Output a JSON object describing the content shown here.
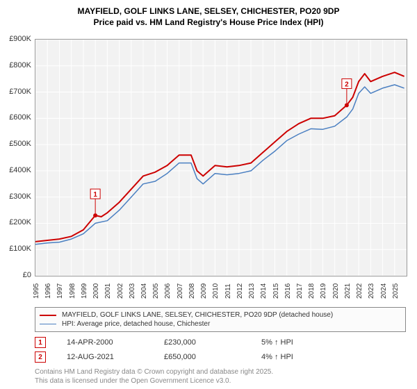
{
  "title_line1": "MAYFIELD, GOLF LINKS LANE, SELSEY, CHICHESTER, PO20 9DP",
  "title_line2": "Price paid vs. HM Land Registry's House Price Index (HPI)",
  "chart": {
    "type": "line",
    "background_color": "#f2f2f2",
    "grid_color": "#ffffff",
    "axis_color": "#999999",
    "ylim": [
      0,
      900
    ],
    "yticks": [
      0,
      100,
      200,
      300,
      400,
      500,
      600,
      700,
      800,
      900
    ],
    "ytick_labels": [
      "£0",
      "£100K",
      "£200K",
      "£300K",
      "£400K",
      "£500K",
      "£600K",
      "£700K",
      "£800K",
      "£900K"
    ],
    "xlim": [
      1995,
      2026
    ],
    "xticks": [
      1995,
      1996,
      1997,
      1998,
      1999,
      2000,
      2001,
      2002,
      2003,
      2004,
      2005,
      2006,
      2007,
      2008,
      2009,
      2010,
      2011,
      2012,
      2013,
      2014,
      2015,
      2016,
      2017,
      2018,
      2019,
      2020,
      2021,
      2022,
      2023,
      2024,
      2025
    ],
    "series": [
      {
        "name": "red",
        "color": "#cc0000",
        "stroke_width": 2,
        "points": [
          [
            1995,
            130
          ],
          [
            1996,
            135
          ],
          [
            1997,
            140
          ],
          [
            1998,
            150
          ],
          [
            1999,
            175
          ],
          [
            2000,
            230
          ],
          [
            2000.5,
            225
          ],
          [
            2001,
            240
          ],
          [
            2002,
            280
          ],
          [
            2003,
            330
          ],
          [
            2004,
            380
          ],
          [
            2005,
            395
          ],
          [
            2006,
            420
          ],
          [
            2007,
            460
          ],
          [
            2008,
            460
          ],
          [
            2008.5,
            400
          ],
          [
            2009,
            380
          ],
          [
            2010,
            420
          ],
          [
            2011,
            415
          ],
          [
            2012,
            420
          ],
          [
            2013,
            430
          ],
          [
            2014,
            470
          ],
          [
            2015,
            510
          ],
          [
            2016,
            550
          ],
          [
            2017,
            580
          ],
          [
            2018,
            600
          ],
          [
            2019,
            600
          ],
          [
            2020,
            610
          ],
          [
            2021,
            650
          ],
          [
            2021.5,
            680
          ],
          [
            2022,
            740
          ],
          [
            2022.5,
            770
          ],
          [
            2023,
            740
          ],
          [
            2024,
            760
          ],
          [
            2025,
            775
          ],
          [
            2025.8,
            760
          ]
        ]
      },
      {
        "name": "blue",
        "color": "#4a7fc1",
        "stroke_width": 1.5,
        "points": [
          [
            1995,
            120
          ],
          [
            1996,
            125
          ],
          [
            1997,
            128
          ],
          [
            1998,
            140
          ],
          [
            1999,
            160
          ],
          [
            2000,
            200
          ],
          [
            2001,
            210
          ],
          [
            2002,
            250
          ],
          [
            2003,
            300
          ],
          [
            2004,
            350
          ],
          [
            2005,
            360
          ],
          [
            2006,
            390
          ],
          [
            2007,
            430
          ],
          [
            2008,
            430
          ],
          [
            2008.5,
            370
          ],
          [
            2009,
            350
          ],
          [
            2010,
            390
          ],
          [
            2011,
            385
          ],
          [
            2012,
            390
          ],
          [
            2013,
            400
          ],
          [
            2014,
            440
          ],
          [
            2015,
            475
          ],
          [
            2016,
            515
          ],
          [
            2017,
            540
          ],
          [
            2018,
            560
          ],
          [
            2019,
            558
          ],
          [
            2020,
            570
          ],
          [
            2021,
            605
          ],
          [
            2021.5,
            635
          ],
          [
            2022,
            695
          ],
          [
            2022.5,
            720
          ],
          [
            2023,
            695
          ],
          [
            2024,
            715
          ],
          [
            2025,
            728
          ],
          [
            2025.8,
            715
          ]
        ]
      }
    ],
    "markers": [
      {
        "num": "1",
        "xyear": 2000,
        "yval": 230,
        "border_color": "#cc0000",
        "text_color": "#cc0000"
      },
      {
        "num": "2",
        "xyear": 2021,
        "yval": 650,
        "border_color": "#cc0000",
        "text_color": "#cc0000"
      }
    ]
  },
  "legend": [
    {
      "color": "#cc0000",
      "width": 2,
      "label": "MAYFIELD, GOLF LINKS LANE, SELSEY, CHICHESTER, PO20 9DP (detached house)"
    },
    {
      "color": "#4a7fc1",
      "width": 1.5,
      "label": "HPI: Average price, detached house, Chichester"
    }
  ],
  "marker_rows": [
    {
      "num": "1",
      "date": "14-APR-2000",
      "price": "£230,000",
      "delta": "5% ↑ HPI"
    },
    {
      "num": "2",
      "date": "12-AUG-2021",
      "price": "£650,000",
      "delta": "4% ↑ HPI"
    }
  ],
  "footer_line1": "Contains HM Land Registry data © Crown copyright and database right 2025.",
  "footer_line2": "This data is licensed under the Open Government Licence v3.0."
}
